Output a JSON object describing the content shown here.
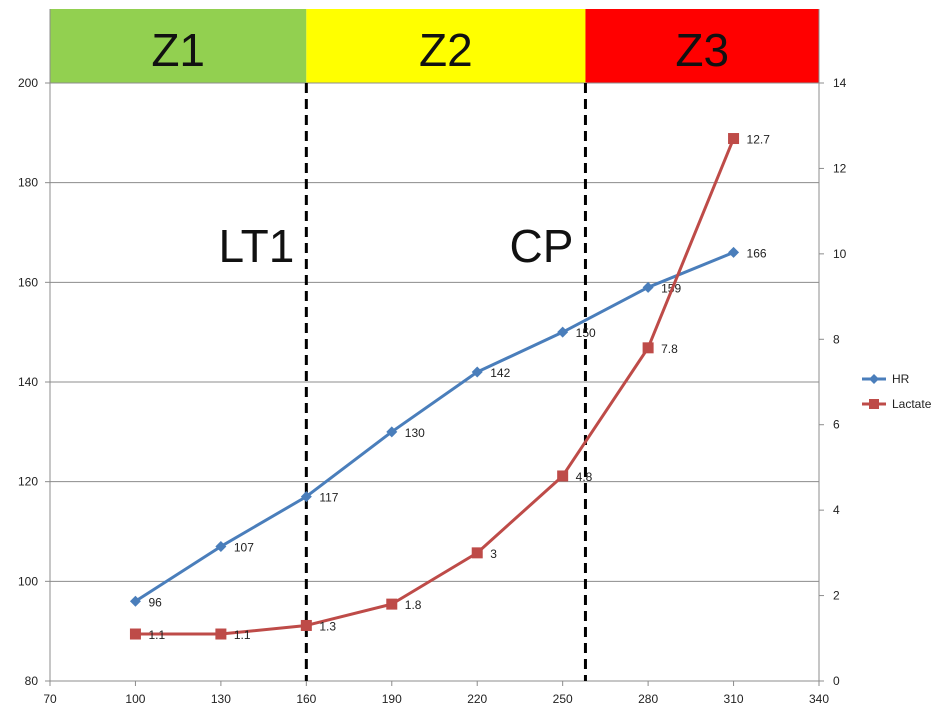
{
  "chart_data": {
    "type": "line",
    "title": "",
    "xlabel": "",
    "ylabel": "",
    "x": [
      100,
      130,
      160,
      190,
      220,
      250,
      280,
      310
    ],
    "xlim": [
      70,
      340
    ],
    "xticks": [
      "70",
      "100",
      "130",
      "160",
      "190",
      "220",
      "250",
      "280",
      "310",
      "340"
    ],
    "ylim": [
      80,
      200
    ],
    "yticks": [
      "80",
      "100",
      "120",
      "140",
      "160",
      "180",
      "200"
    ],
    "y2lim": [
      0,
      14
    ],
    "y2ticks": [
      "0",
      "2",
      "4",
      "6",
      "8",
      "10",
      "12",
      "14"
    ],
    "grid": true,
    "legend": "right",
    "series": [
      {
        "name": "HR",
        "axis": "left",
        "color": "#4a7ebb",
        "marker": "diamond",
        "values": [
          96,
          107,
          117,
          130,
          142,
          150,
          159,
          166
        ],
        "labels": [
          "96",
          "107",
          "117",
          "130",
          "142",
          "150",
          "159",
          "166"
        ]
      },
      {
        "name": "Lactate",
        "axis": "right",
        "color": "#be4b48",
        "marker": "square",
        "values": [
          1.1,
          1.1,
          1.3,
          1.8,
          3,
          4.8,
          7.8,
          12.7
        ],
        "labels": [
          "1.1",
          "1.1",
          "1.3",
          "1.8",
          "3",
          "4.8",
          "7.8",
          "12.7"
        ]
      }
    ],
    "zones": [
      {
        "label": "Z1",
        "color": "#92d050",
        "from": 70,
        "to": 160
      },
      {
        "label": "Z2",
        "color": "#ffff00",
        "from": 160,
        "to": 258
      },
      {
        "label": "Z3",
        "color": "#ff0000",
        "from": 258,
        "to": 340
      }
    ],
    "thresholds": [
      {
        "label": "LT1",
        "x": 160
      },
      {
        "label": "CP",
        "x": 258
      }
    ]
  }
}
